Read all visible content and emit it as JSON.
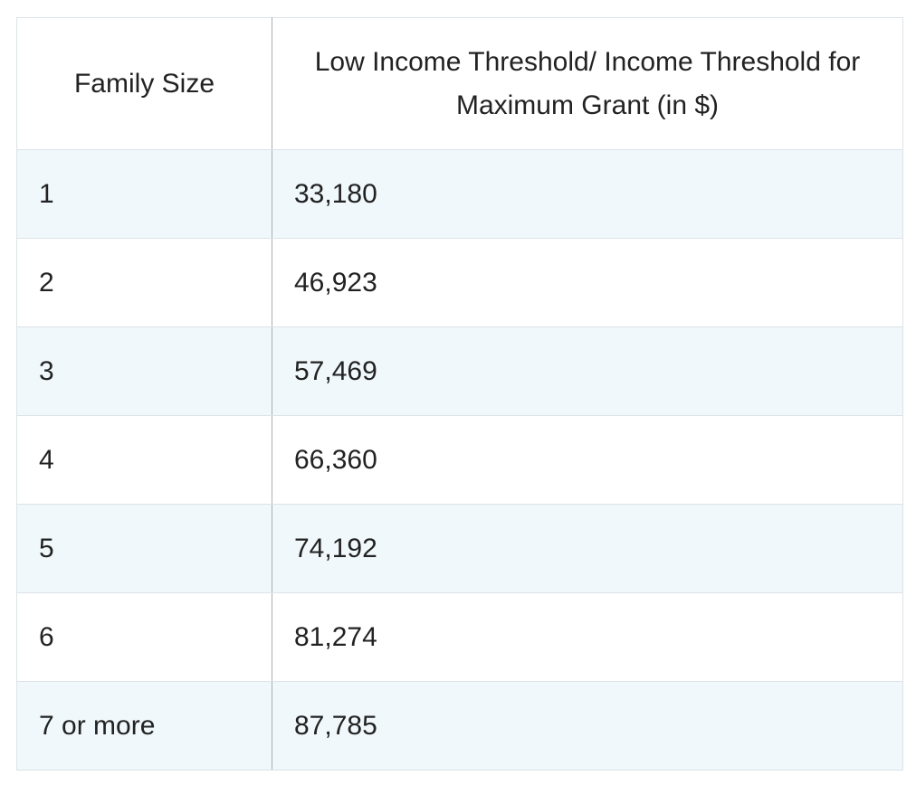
{
  "table": {
    "headers": [
      "Family Size",
      "Low Income Threshold/ Income Threshold for Maximum Grant (in $)"
    ],
    "rows": [
      [
        "1",
        "33,180"
      ],
      [
        "2",
        "46,923"
      ],
      [
        "3",
        "57,469"
      ],
      [
        "4",
        "66,360"
      ],
      [
        "5",
        "74,192"
      ],
      [
        "6",
        "81,274"
      ],
      [
        "7 or more",
        "87,785"
      ]
    ]
  }
}
